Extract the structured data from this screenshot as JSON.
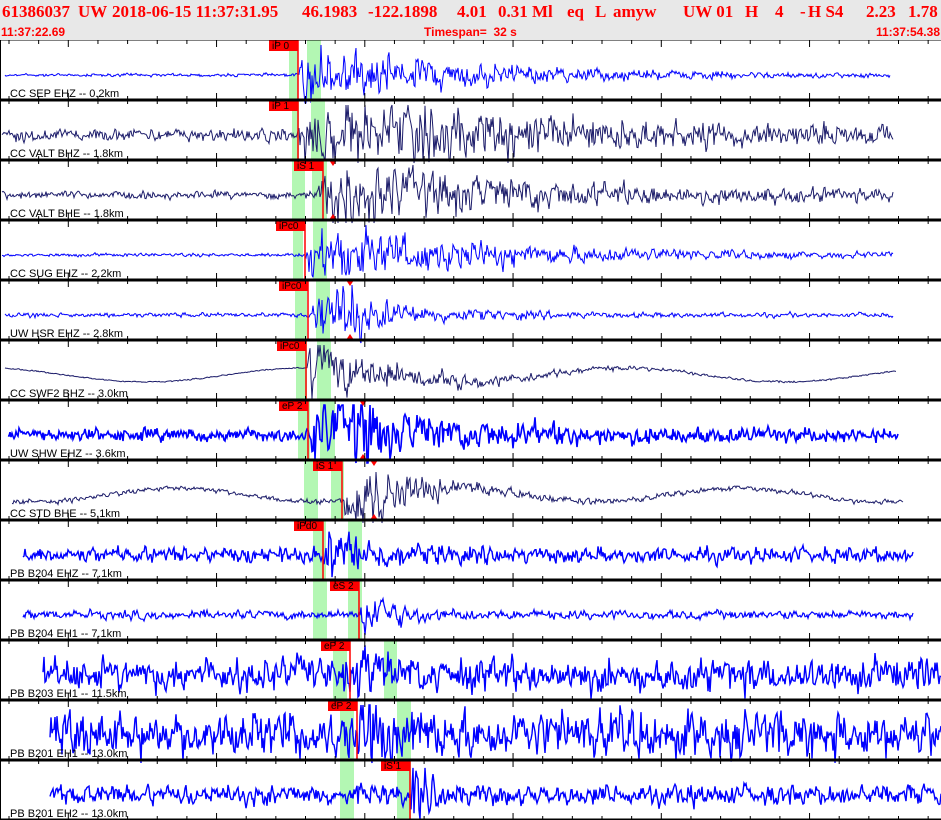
{
  "header": {
    "event_id": "61386037",
    "network": "UW",
    "origin": "2018-06-15 11:37:31.95",
    "lat": "46.1983",
    "lon": "-122.1898",
    "depth": "4.01",
    "magnitude": "0.31 Ml",
    "type": "eq",
    "flag": "L",
    "analyst": "amyw",
    "source": "UW 01",
    "quality_h": "H",
    "count": "4",
    "dash": "-",
    "quality": "H S4",
    "rms": "2.23",
    "err": "1.78",
    "start_time": "11:37:22.69",
    "timespan": "Timespan=  32 s",
    "end_time": "11:37:54.38"
  },
  "colors": {
    "header_text": "#ff0000",
    "header_bg": "#e8e8e8",
    "trace_blue": "#0000ff",
    "trace_navy": "#1c1c6a",
    "pick": "#ff0000",
    "window": "#b3f7b3"
  },
  "channels": [
    {
      "label": "CC SEP EHZ -- 0.2km",
      "pick": "iP 0",
      "color": "blue"
    },
    {
      "label": "CC VALT BHZ -- 1.8km",
      "pick": "iP 1",
      "color": "navy"
    },
    {
      "label": "CC VALT BHE -- 1.8km",
      "pick": "iS 1",
      "color": "navy"
    },
    {
      "label": "CC SUG EHZ -- 2.2km",
      "pick": "iPc0",
      "color": "blue"
    },
    {
      "label": "UW HSR EHZ -- 2.8km",
      "pick": "iPc0",
      "color": "blue"
    },
    {
      "label": "CC SWF2 BHZ -- 3.0km",
      "pick": "iPc0",
      "color": "navy"
    },
    {
      "label": "UW SHW EHZ -- 3.6km",
      "pick": "eP 2",
      "color": "blue"
    },
    {
      "label": "CC STD BHE -- 5.1km",
      "pick": "iS 1",
      "color": "navy"
    },
    {
      "label": "PB B204 EHZ -- 7.1km",
      "pick": "iPd0",
      "color": "blue"
    },
    {
      "label": "PB B204 EH1 -- 7.1km",
      "pick": "eS 2",
      "color": "blue"
    },
    {
      "label": "PB B203 EH1 -- 11.5km",
      "pick": "eP 2",
      "color": "blue"
    },
    {
      "label": "PB B201 EH1 -- 13.0km",
      "pick": "eP 2",
      "color": "blue"
    },
    {
      "label": "PB B201 EH2 -- 13.0km",
      "pick": "iS 1",
      "color": "blue"
    }
  ]
}
